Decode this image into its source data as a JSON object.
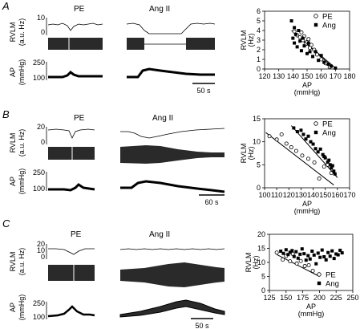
{
  "panels": [
    {
      "letter": "A",
      "cond_left": "PE",
      "cond_right": "Ang II",
      "trace_rvlm_label": [
        "RVLM",
        "(a.u. Hz)"
      ],
      "trace_rvlm_ticks": [
        "10",
        "0"
      ],
      "trace_ap_label": [
        "AP",
        "(mmHg)"
      ],
      "trace_ap_ticks": [
        "250",
        "100"
      ],
      "scalebar": "50 s"
    },
    {
      "letter": "B",
      "cond_left": "PE",
      "cond_right": "Ang II",
      "trace_rvlm_label": [
        "RVLM",
        "(a.u. Hz)"
      ],
      "trace_rvlm_ticks": [
        "20",
        "0"
      ],
      "trace_ap_label": [
        "AP",
        "(mmHg)"
      ],
      "trace_ap_ticks": [
        "250",
        "100"
      ],
      "scalebar": "60 s"
    },
    {
      "letter": "C",
      "cond_left": "PE",
      "cond_right": "Ang II",
      "trace_rvlm_label": [
        "RVLM",
        "(a.u. Hz)"
      ],
      "trace_rvlm_ticks": [
        "20",
        "10",
        "0"
      ],
      "trace_ap_label": [
        "AP",
        "(mmHg)"
      ],
      "trace_ap_ticks": [
        "250",
        "100"
      ],
      "scalebar": "50 s"
    }
  ],
  "chart_data": [
    {
      "type": "scatter",
      "xlabel": "AP (mmHg)",
      "ylabel": "RVLM (Hz)",
      "ylabel_lines": [
        "RVLM",
        "(Hz)"
      ],
      "xlim": [
        120,
        180
      ],
      "ylim": [
        0,
        6
      ],
      "xticks": [
        120,
        130,
        140,
        150,
        160,
        170,
        180
      ],
      "yticks": [
        0,
        1,
        2,
        3,
        4,
        5,
        6
      ],
      "legend_position": "top-right",
      "series": [
        {
          "name": "PE",
          "marker": "open-circle",
          "x": [
            141,
            143,
            145,
            146,
            147,
            148,
            149,
            150,
            151,
            152,
            153,
            155,
            157,
            160,
            163,
            166
          ],
          "y": [
            3.9,
            3.5,
            3.3,
            3.8,
            3.0,
            3.4,
            2.6,
            2.8,
            3.1,
            2.2,
            2.5,
            2.0,
            1.5,
            1.0,
            0.6,
            0.2
          ]
        },
        {
          "name": "Ang",
          "marker": "filled-square",
          "x": [
            139,
            140,
            141,
            141,
            142,
            143,
            144,
            145,
            146,
            147,
            148,
            150,
            151,
            152,
            154,
            156,
            158,
            160,
            162,
            165,
            167,
            170
          ],
          "y": [
            5.0,
            3.2,
            4.3,
            2.7,
            3.6,
            2.3,
            4.0,
            2.9,
            1.9,
            3.2,
            2.4,
            1.6,
            2.7,
            1.8,
            1.3,
            1.8,
            0.9,
            1.4,
            0.7,
            0.5,
            0.3,
            0.1
          ]
        }
      ],
      "fit_lines": [
        {
          "x": [
            139,
            170
          ],
          "y": [
            4.0,
            0.1
          ]
        },
        {
          "x": [
            141,
            168
          ],
          "y": [
            3.7,
            0.2
          ]
        }
      ]
    },
    {
      "type": "scatter",
      "xlabel": "AP (mmHg)",
      "ylabel": "RVLM (Hz)",
      "ylabel_lines": [
        "RVLM",
        "(Hz)"
      ],
      "xlim": [
        100,
        170
      ],
      "ylim": [
        0,
        15
      ],
      "xticks": [
        100,
        110,
        120,
        130,
        140,
        150,
        160,
        170
      ],
      "yticks": [
        0,
        5,
        10,
        15
      ],
      "legend_position": "top-right",
      "series": [
        {
          "name": "PE",
          "marker": "open-circle",
          "x": [
            104,
            110,
            114,
            118,
            122,
            126,
            131,
            136,
            141,
            145,
            149,
            152,
            155
          ],
          "y": [
            11.2,
            10.5,
            11.6,
            9.6,
            8.8,
            8.0,
            7.0,
            6.3,
            5.5,
            2.0,
            4.6,
            5.0,
            3.2
          ]
        },
        {
          "name": "Ang",
          "marker": "filled-square",
          "x": [
            124,
            127,
            130,
            132,
            134,
            136,
            138,
            140,
            142,
            144,
            146,
            148,
            149,
            150,
            152,
            153,
            154,
            155,
            156,
            157,
            158
          ],
          "y": [
            13.0,
            12.2,
            12.5,
            11.6,
            10.6,
            11.2,
            10.0,
            9.5,
            8.5,
            7.8,
            8.4,
            7.2,
            6.8,
            6.5,
            5.6,
            6.0,
            5.0,
            4.3,
            4.8,
            3.6,
            3.0
          ]
        }
      ],
      "fit_lines": [
        {
          "x": [
            101,
            157
          ],
          "y": [
            12.0,
            0.6
          ]
        },
        {
          "x": [
            122,
            160
          ],
          "y": [
            13.5,
            2.2
          ]
        }
      ]
    },
    {
      "type": "scatter",
      "xlabel": "AP (mmHg)",
      "ylabel": "RVLM (Hz)",
      "ylabel_lines": [
        "RVLM",
        "(Hz)"
      ],
      "xlim": [
        125,
        250
      ],
      "ylim": [
        0,
        20
      ],
      "xticks": [
        125,
        150,
        175,
        200,
        225,
        250
      ],
      "yticks": [
        0,
        5,
        10,
        15,
        20
      ],
      "legend_position": "bottom-right",
      "series": [
        {
          "name": "PE",
          "marker": "open-circle",
          "x": [
            136,
            145,
            150,
            156,
            160,
            166,
            172,
            178,
            184,
            190
          ],
          "y": [
            13.5,
            11.0,
            12.3,
            10.4,
            13.0,
            9.6,
            10.5,
            8.7,
            9.0,
            7.0
          ]
        },
        {
          "name": "Ang",
          "marker": "filled-square",
          "x": [
            142,
            146,
            150,
            153,
            156,
            159,
            162,
            165,
            168,
            171,
            174,
            177,
            180,
            183,
            186,
            189,
            192,
            195,
            198,
            201,
            204,
            207,
            210,
            213,
            216,
            219,
            222,
            225,
            228,
            231,
            234
          ],
          "y": [
            14.0,
            13.2,
            14.5,
            12.8,
            13.6,
            14.2,
            12.1,
            13.8,
            11.5,
            12.9,
            14.8,
            13.1,
            10.8,
            12.4,
            11.2,
            14.0,
            12.6,
            9.5,
            13.3,
            11.8,
            14.4,
            12.0,
            10.9,
            13.5,
            12.2,
            14.1,
            11.4,
            13.0,
            12.7,
            14.3,
            13.4
          ]
        }
      ],
      "fit_lines": [
        {
          "x": [
            136,
            200
          ],
          "y": [
            12.8,
            5.0
          ]
        }
      ]
    }
  ]
}
